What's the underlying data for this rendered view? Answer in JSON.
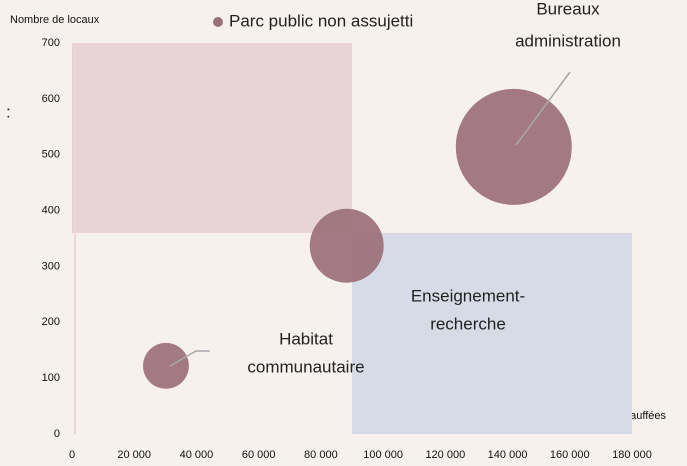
{
  "chart_data": {
    "type": "scatter",
    "y_label": "Nombre de locaux",
    "x_label": "Surfaces chauffées",
    "annotations": [
      ":"
    ],
    "series": [
      {
        "name": "Parc public non assujetti",
        "color": "#9b7079",
        "x": [
          30200,
          88300,
          142000
        ],
        "values": [
          122,
          337,
          514
        ],
        "sizes": [
          1,
          2.6,
          6.4
        ],
        "labels": [
          [
            "Habitat",
            "communautaire"
          ],
          [
            "Enseignement-",
            "recherche"
          ],
          [
            "Bureaux",
            "administration"
          ]
        ]
      }
    ],
    "quadrants": [
      {
        "xlim": [
          0,
          90000
        ],
        "ylim": [
          360,
          700
        ],
        "color": "#e8d4d7"
      },
      {
        "xlim": [
          90000,
          180000
        ],
        "ylim": [
          0,
          360
        ],
        "color": "#d6dbe5"
      }
    ],
    "xlim": [
      0,
      180000
    ],
    "xticks": [
      0,
      {
        "value": 20000,
        "label": "20 000"
      },
      {
        "value": 40000,
        "label": "40 000"
      },
      {
        "value": 60000,
        "label": "60 000"
      },
      {
        "value": 80000,
        "label": "80 000"
      },
      {
        "value": 100000,
        "label": "100 000"
      },
      {
        "value": 120000,
        "label": "120 000"
      },
      {
        "value": 140000,
        "label": "140 000"
      },
      {
        "value": 160000,
        "label": "160 000"
      },
      {
        "value": 180000,
        "label": "180 000"
      }
    ],
    "ylim": [
      0,
      700
    ],
    "yticks": [
      0,
      100,
      200,
      300,
      400,
      500,
      600,
      700
    ]
  }
}
